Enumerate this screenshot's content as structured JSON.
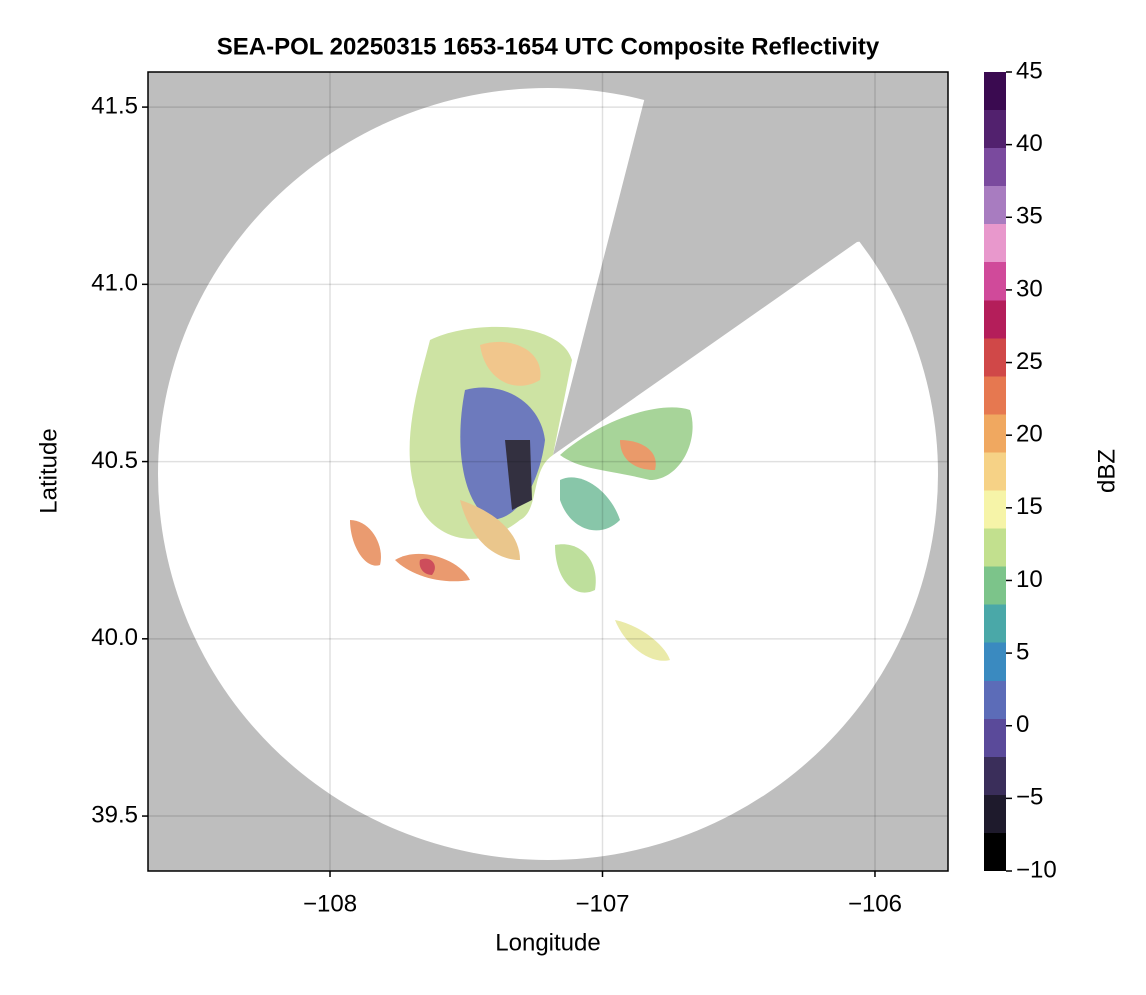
{
  "chart_data": {
    "type": "radar-map",
    "title": "SEA-POL 20250315 1653-1654 UTC Composite Reflectivity",
    "x_label": "Longitude",
    "y_label": "Latitude",
    "xlim": [
      -108.668,
      -105.732
    ],
    "ylim": [
      39.345,
      41.599
    ],
    "xticks": [
      {
        "value": -108,
        "label": "−108"
      },
      {
        "value": -107,
        "label": "−107"
      },
      {
        "value": -106,
        "label": "−106"
      }
    ],
    "yticks": [
      39.5,
      {
        "value": 40,
        "label": "40.0"
      },
      40.5,
      {
        "value": 41,
        "label": "41.0"
      },
      41.5
    ],
    "grid": true,
    "colorbar": {
      "label": "dBZ",
      "lim": [
        -10,
        45
      ],
      "ticks": [
        {
          "value": -10,
          "label": "−10"
        },
        {
          "value": -5,
          "label": "−5"
        },
        0,
        5,
        10,
        15,
        20,
        25,
        30,
        35,
        40,
        45
      ],
      "colors": [
        "#000000",
        "#1e1a2c",
        "#3a2e5a",
        "#5a4a9a",
        "#5c6cb8",
        "#3a8ac0",
        "#4aa8a8",
        "#7cc48a",
        "#c2e08e",
        "#f6f4a8",
        "#f6d286",
        "#f0a860",
        "#e67850",
        "#d04848",
        "#b41e5a",
        "#d04a9a",
        "#e898cc",
        "#a87cc0",
        "#7a4a9e",
        "#52216e",
        "#3a0a50"
      ]
    }
  }
}
